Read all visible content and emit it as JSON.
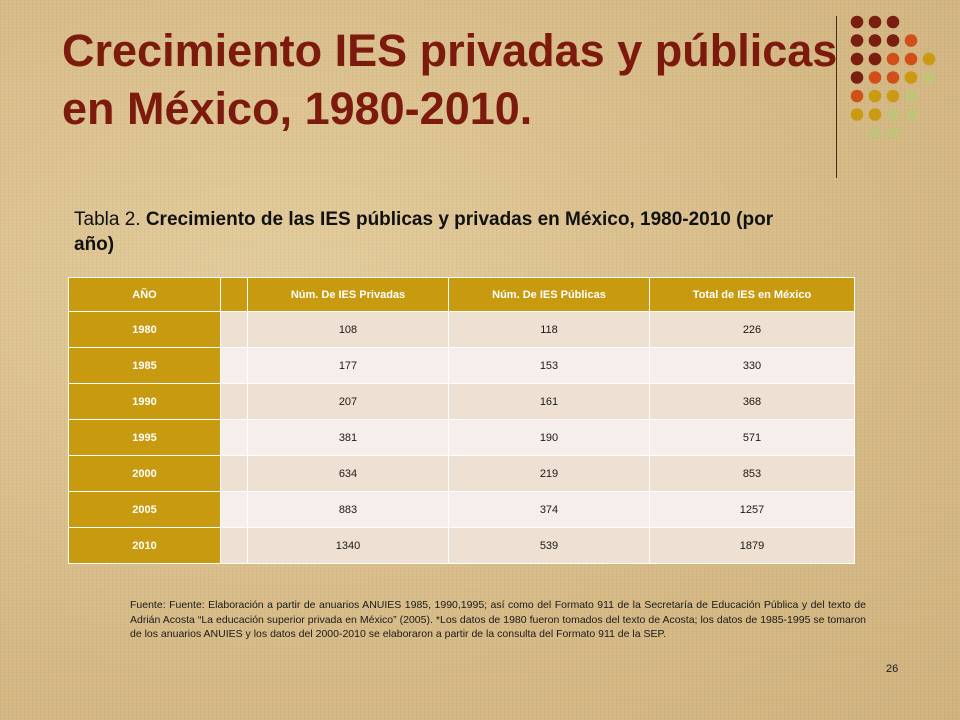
{
  "slide": {
    "title": "Crecimiento IES privadas y públicas en México, 1980-2010.",
    "caption_prefix": "Tabla 2. ",
    "caption_bold": "Crecimiento de las IES públicas y privadas en México, 1980-2010 (por año)",
    "source": "Fuente: Fuente: Elaboración a partir de anuarios ANUIES 1985, 1990,1995; así como del Formato 911 de la Secretaría de Educación Pública y del texto de Adrián Acosta “La educación superior privada en México” (2005). *Los datos de 1980 fueron tomados del texto de Acosta; los datos de 1985-1995 se tomaron de los anuarios ANUIES y los datos del 2000-2010 se elaboraron a partir de la consulta del Formato 911 de la SEP.",
    "page_number": "26"
  },
  "table": {
    "headers": [
      "AÑO",
      "",
      "Núm. De IES Privadas",
      "Núm. De IES Públicas",
      "Total de IES en México"
    ],
    "rows": [
      [
        "1980",
        "",
        "108",
        "118",
        "226"
      ],
      [
        "1985",
        "",
        "177",
        "153",
        "330"
      ],
      [
        "1990",
        "",
        "207",
        "161",
        "368"
      ],
      [
        "1995",
        "",
        "381",
        "190",
        "571"
      ],
      [
        "2000",
        "",
        "634",
        "219",
        "853"
      ],
      [
        "2005",
        "",
        "883",
        "374",
        "1257"
      ],
      [
        "2010",
        "",
        "1340",
        "539",
        "1879"
      ]
    ]
  },
  "colors": {
    "title": "#7b1a0d",
    "header_gold": "#c89a10",
    "dot_maroon": "#7a1e10",
    "dot_orange": "#d1501a",
    "dot_gold": "#c99a12",
    "dot_olive": "#c2c27a"
  },
  "decoration": {
    "dot_grid_icon": "decorative-dot-grid",
    "dot_rows": [
      [
        "maroon",
        "maroon",
        "maroon"
      ],
      [
        "maroon",
        "maroon",
        "maroon",
        "orange"
      ],
      [
        "maroon",
        "maroon",
        "orange",
        "orange",
        "gold"
      ],
      [
        "maroon",
        "orange",
        "orange",
        "gold",
        "olive"
      ],
      [
        "orange",
        "gold",
        "gold",
        "olive"
      ],
      [
        "gold",
        "gold",
        "olive",
        "olive"
      ],
      [
        "olive",
        "olive"
      ]
    ]
  }
}
